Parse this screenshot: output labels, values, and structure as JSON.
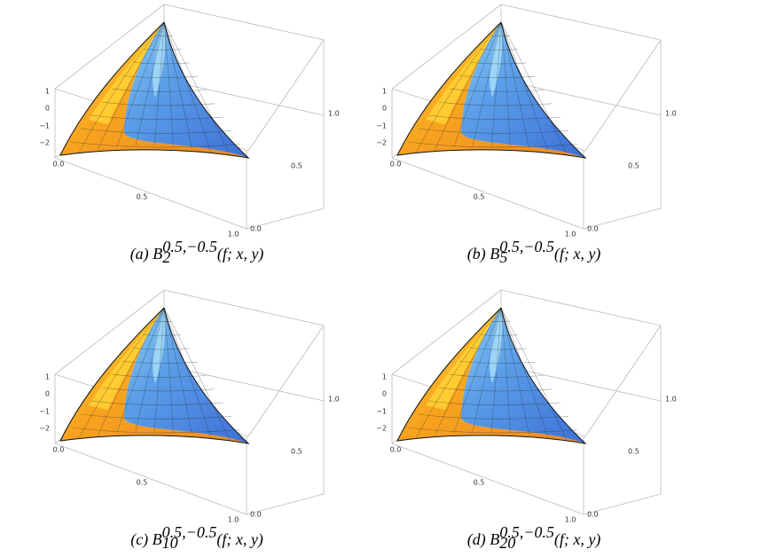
{
  "panels": [
    {
      "caption": {
        "label": "(a)",
        "symbol": "B",
        "subscript": "2",
        "superscript": "0.5,−0.5",
        "argument": "(f; x, y)"
      },
      "z_ticks": [
        "1",
        "0",
        "−1",
        "−2"
      ],
      "x_ticks": [
        "0.0",
        "0.5",
        "1.0"
      ],
      "y_ticks": [
        "0.0",
        "0.5",
        "1.0"
      ]
    },
    {
      "caption": {
        "label": "(b)",
        "symbol": "B",
        "subscript": "5",
        "superscript": "0.5,−0.5",
        "argument": "(f; x, y)"
      },
      "z_ticks": [
        "1",
        "0",
        "−1",
        "−2"
      ],
      "x_ticks": [
        "0.0",
        "0.5",
        "1.0"
      ],
      "y_ticks": [
        "0.0",
        "0.5",
        "1.0"
      ]
    },
    {
      "caption": {
        "label": "(c)",
        "symbol": "B",
        "subscript": "10",
        "superscript": "0.5,−0.5",
        "argument": "(f; x, y)"
      },
      "z_ticks": [
        "1",
        "0",
        "−1",
        "−2"
      ],
      "x_ticks": [
        "0.0",
        "0.5",
        "1.0"
      ],
      "y_ticks": [
        "0.0",
        "0.5",
        "1.0"
      ]
    },
    {
      "caption": {
        "label": "(d)",
        "symbol": "B",
        "subscript": "20",
        "superscript": "0.5,−0.5",
        "argument": "(f; x, y)"
      },
      "z_ticks": [
        "1",
        "0",
        "−1",
        "−2"
      ],
      "x_ticks": [
        "0.0",
        "0.5",
        "1.0"
      ],
      "y_ticks": [
        "0.0",
        "0.5",
        "1.0"
      ]
    }
  ]
}
